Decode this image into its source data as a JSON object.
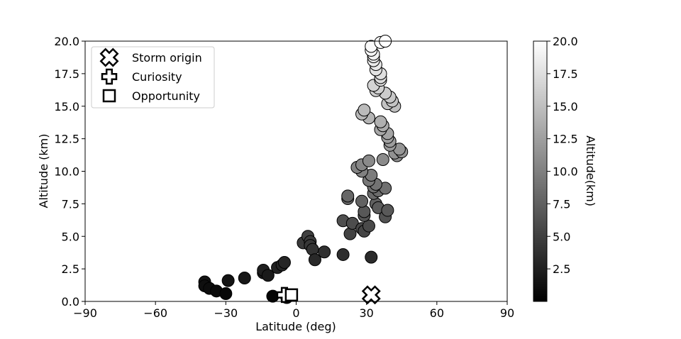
{
  "chart_data": {
    "type": "scatter",
    "xlabel": "Latitude (deg)",
    "ylabel": "Altitude (km)",
    "xlim": [
      -90,
      90
    ],
    "ylim": [
      0,
      20
    ],
    "xticks": [
      -90,
      -60,
      -30,
      0,
      30,
      60,
      90
    ],
    "xtick_labels": [
      "−90",
      "−60",
      "−30",
      "0",
      "30",
      "60",
      "90"
    ],
    "yticks": [
      0,
      2.5,
      5,
      7.5,
      10,
      12.5,
      15,
      17.5,
      20
    ],
    "ytick_labels": [
      "0.0",
      "2.5",
      "5.0",
      "7.5",
      "10.0",
      "12.5",
      "15.0",
      "17.5",
      "20.0"
    ],
    "grid": false,
    "legend_position": "upper-left",
    "colorscale": "grayscale",
    "colorbar": {
      "label": "Altitude(km)",
      "range": [
        0,
        20
      ],
      "ticks": [
        2.5,
        5,
        7.5,
        10,
        12.5,
        15,
        17.5,
        20
      ],
      "tick_labels": [
        "2.5",
        "5.0",
        "7.5",
        "10.0",
        "12.5",
        "15.0",
        "17.5",
        "20.0"
      ]
    },
    "points": [
      {
        "x": -39,
        "y": 1.5
      },
      {
        "x": -39,
        "y": 1.2
      },
      {
        "x": -37,
        "y": 1.0
      },
      {
        "x": -34,
        "y": 0.8
      },
      {
        "x": -30,
        "y": 0.6
      },
      {
        "x": -29,
        "y": 1.6
      },
      {
        "x": -22,
        "y": 1.8
      },
      {
        "x": -14,
        "y": 2.2
      },
      {
        "x": -14,
        "y": 2.4
      },
      {
        "x": -12,
        "y": 2.0
      },
      {
        "x": -8,
        "y": 2.6
      },
      {
        "x": -6,
        "y": 2.8
      },
      {
        "x": -5,
        "y": 3.0
      },
      {
        "x": -10,
        "y": 0.4
      },
      {
        "x": -4,
        "y": 0.3
      },
      {
        "x": 3,
        "y": 4.5
      },
      {
        "x": 5,
        "y": 5.0
      },
      {
        "x": 6,
        "y": 4.6
      },
      {
        "x": 6,
        "y": 4.3
      },
      {
        "x": 7,
        "y": 4.0
      },
      {
        "x": 8,
        "y": 3.2
      },
      {
        "x": 12,
        "y": 3.8
      },
      {
        "x": 20,
        "y": 3.6
      },
      {
        "x": 20,
        "y": 6.2
      },
      {
        "x": 23,
        "y": 5.2
      },
      {
        "x": 24,
        "y": 6.0
      },
      {
        "x": 22,
        "y": 7.9
      },
      {
        "x": 22,
        "y": 8.1
      },
      {
        "x": 28,
        "y": 5.6
      },
      {
        "x": 29,
        "y": 5.4
      },
      {
        "x": 31,
        "y": 5.8
      },
      {
        "x": 29,
        "y": 6.6
      },
      {
        "x": 29,
        "y": 6.9
      },
      {
        "x": 28,
        "y": 7.7
      },
      {
        "x": 32,
        "y": 3.4
      },
      {
        "x": 34,
        "y": 7.5
      },
      {
        "x": 35,
        "y": 7.2
      },
      {
        "x": 38,
        "y": 6.5
      },
      {
        "x": 39,
        "y": 7.0
      },
      {
        "x": 33,
        "y": 8.3
      },
      {
        "x": 35,
        "y": 8.5
      },
      {
        "x": 38,
        "y": 8.7
      },
      {
        "x": 33,
        "y": 8.8
      },
      {
        "x": 34,
        "y": 9.0
      },
      {
        "x": 31,
        "y": 9.3
      },
      {
        "x": 32,
        "y": 9.7
      },
      {
        "x": 28,
        "y": 10.0
      },
      {
        "x": 26,
        "y": 10.3
      },
      {
        "x": 28,
        "y": 10.5
      },
      {
        "x": 31,
        "y": 10.8
      },
      {
        "x": 37,
        "y": 10.9
      },
      {
        "x": 43,
        "y": 11.2
      },
      {
        "x": 42,
        "y": 11.4
      },
      {
        "x": 45,
        "y": 11.5
      },
      {
        "x": 44,
        "y": 11.7
      },
      {
        "x": 40,
        "y": 12.0
      },
      {
        "x": 40,
        "y": 12.3
      },
      {
        "x": 39,
        "y": 12.6
      },
      {
        "x": 39,
        "y": 12.9
      },
      {
        "x": 36,
        "y": 13.2
      },
      {
        "x": 37,
        "y": 13.5
      },
      {
        "x": 36,
        "y": 13.8
      },
      {
        "x": 31,
        "y": 14.1
      },
      {
        "x": 28,
        "y": 14.4
      },
      {
        "x": 29,
        "y": 14.7
      },
      {
        "x": 42,
        "y": 15.0
      },
      {
        "x": 39,
        "y": 15.2
      },
      {
        "x": 41,
        "y": 15.4
      },
      {
        "x": 40,
        "y": 15.7
      },
      {
        "x": 38,
        "y": 16.0
      },
      {
        "x": 34,
        "y": 16.2
      },
      {
        "x": 35,
        "y": 16.4
      },
      {
        "x": 33,
        "y": 16.6
      },
      {
        "x": 36,
        "y": 17.0
      },
      {
        "x": 36,
        "y": 17.2
      },
      {
        "x": 36,
        "y": 17.5
      },
      {
        "x": 34,
        "y": 17.8
      },
      {
        "x": 34,
        "y": 18.2
      },
      {
        "x": 33,
        "y": 18.5
      },
      {
        "x": 33,
        "y": 18.8
      },
      {
        "x": 33,
        "y": 19.0
      },
      {
        "x": 32,
        "y": 19.3
      },
      {
        "x": 32,
        "y": 19.6
      },
      {
        "x": 36,
        "y": 19.9
      },
      {
        "x": 38,
        "y": 20.0
      }
    ],
    "markers": [
      {
        "name": "Storm origin",
        "symbol": "x-cross",
        "x": 32,
        "y": 0.5
      },
      {
        "name": "Curiosity",
        "symbol": "plus-cross",
        "x": -5,
        "y": 0.5
      },
      {
        "name": "Opportunity",
        "symbol": "square",
        "x": -2,
        "y": 0.5
      }
    ],
    "legend": [
      "Storm origin",
      "Curiosity",
      "Opportunity"
    ]
  }
}
